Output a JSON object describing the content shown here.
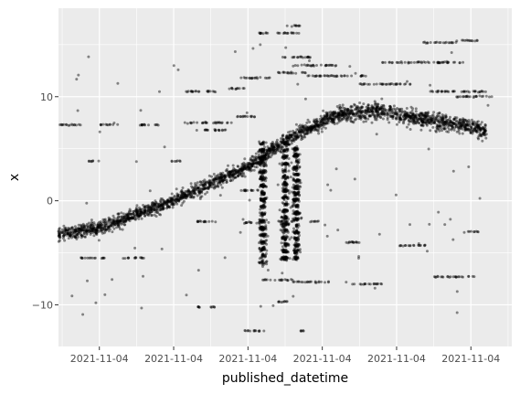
{
  "chart_data": {
    "type": "scatter",
    "xlabel": "published_datetime",
    "ylabel": "x",
    "x_tick_labels": [
      "2021-11-04",
      "2021-11-04",
      "2021-11-04",
      "2021-11-04",
      "2021-11-04",
      "2021-11-04"
    ],
    "x_tick_positions": [
      1,
      2,
      3,
      4,
      5,
      6
    ],
    "y_ticks": [
      -10,
      0,
      10
    ],
    "xlim": [
      0.45,
      6.55
    ],
    "ylim": [
      -14,
      18.5
    ],
    "grid": true,
    "panel_color": "#ebebeb",
    "grid_color": "#ffffff",
    "point_color": "#000000",
    "point_alpha": 0.45,
    "trend": {
      "x": [
        0.35,
        1.0,
        2.0,
        3.0,
        3.6,
        4.2,
        4.5,
        4.8,
        5.2,
        5.6,
        6.0,
        6.2
      ],
      "y": [
        -3.3,
        -2.6,
        0.0,
        3.3,
        6.2,
        8.2,
        8.6,
        8.6,
        8.0,
        7.6,
        7.1,
        6.8
      ]
    },
    "vertical_bands": [
      {
        "x": 3.2,
        "y_min": -6.0,
        "y_max": 5.5
      },
      {
        "x": 3.5,
        "y_min": -5.5,
        "y_max": 5.5
      },
      {
        "x": 3.65,
        "y_min": -5.5,
        "y_max": 5.0
      }
    ],
    "horizontal_streaks": [
      {
        "y": 7.3,
        "x0": 0.3,
        "x1": 0.75
      },
      {
        "y": 7.3,
        "x0": 1.0,
        "x1": 1.25
      },
      {
        "y": 7.3,
        "x0": 1.5,
        "x1": 1.8
      },
      {
        "y": 7.5,
        "x0": 2.15,
        "x1": 2.45
      },
      {
        "y": 7.5,
        "x0": 2.5,
        "x1": 2.8
      },
      {
        "y": 6.8,
        "x0": 2.3,
        "x1": 2.7
      },
      {
        "y": 8.1,
        "x0": 2.8,
        "x1": 3.1
      },
      {
        "y": 10.5,
        "x0": 2.15,
        "x1": 2.6
      },
      {
        "y": 10.8,
        "x0": 2.7,
        "x1": 2.95
      },
      {
        "y": 11.8,
        "x0": 2.9,
        "x1": 3.3
      },
      {
        "y": 12.3,
        "x0": 3.4,
        "x1": 3.8
      },
      {
        "y": 13.0,
        "x0": 3.6,
        "x1": 4.2
      },
      {
        "y": 13.8,
        "x0": 3.45,
        "x1": 3.85
      },
      {
        "y": 16.1,
        "x0": 3.15,
        "x1": 3.7
      },
      {
        "y": 16.8,
        "x0": 3.5,
        "x1": 3.7
      },
      {
        "y": 15.2,
        "x0": 5.35,
        "x1": 5.8
      },
      {
        "y": 15.4,
        "x0": 5.8,
        "x1": 6.1
      },
      {
        "y": 13.3,
        "x0": 4.8,
        "x1": 5.9
      },
      {
        "y": 12.0,
        "x0": 3.8,
        "x1": 4.6
      },
      {
        "y": 11.2,
        "x0": 4.5,
        "x1": 5.2
      },
      {
        "y": 10.5,
        "x0": 5.4,
        "x1": 6.2
      },
      {
        "y": 10.0,
        "x0": 5.8,
        "x1": 6.3
      },
      {
        "y": 3.8,
        "x0": 0.85,
        "x1": 1.0
      },
      {
        "y": 3.8,
        "x0": 1.95,
        "x1": 2.1
      },
      {
        "y": 1.0,
        "x0": 2.9,
        "x1": 3.2
      },
      {
        "y": -2.0,
        "x0": 2.3,
        "x1": 2.6
      },
      {
        "y": -2.1,
        "x0": 2.95,
        "x1": 3.3
      },
      {
        "y": -2.0,
        "x0": 3.4,
        "x1": 3.6
      },
      {
        "y": -2.0,
        "x0": 3.8,
        "x1": 3.95
      },
      {
        "y": -4.3,
        "x0": 5.0,
        "x1": 5.4
      },
      {
        "y": -4.0,
        "x0": 4.2,
        "x1": 4.5
      },
      {
        "y": -3.0,
        "x0": 5.9,
        "x1": 6.1
      },
      {
        "y": -5.5,
        "x0": 0.75,
        "x1": 1.1
      },
      {
        "y": -5.5,
        "x0": 1.3,
        "x1": 1.6
      },
      {
        "y": -7.3,
        "x0": 5.5,
        "x1": 6.05
      },
      {
        "y": -7.6,
        "x0": 3.2,
        "x1": 3.6
      },
      {
        "y": -7.8,
        "x0": 3.6,
        "x1": 4.1
      },
      {
        "y": -8.0,
        "x0": 4.4,
        "x1": 4.8
      },
      {
        "y": -9.7,
        "x0": 3.4,
        "x1": 3.6
      },
      {
        "y": -10.2,
        "x0": 2.5,
        "x1": 2.55
      },
      {
        "y": -10.2,
        "x0": 2.3,
        "x1": 2.35
      },
      {
        "y": -12.5,
        "x0": 2.95,
        "x1": 3.25
      },
      {
        "y": -12.5,
        "x0": 3.7,
        "x1": 3.75
      }
    ],
    "seed": 7
  }
}
